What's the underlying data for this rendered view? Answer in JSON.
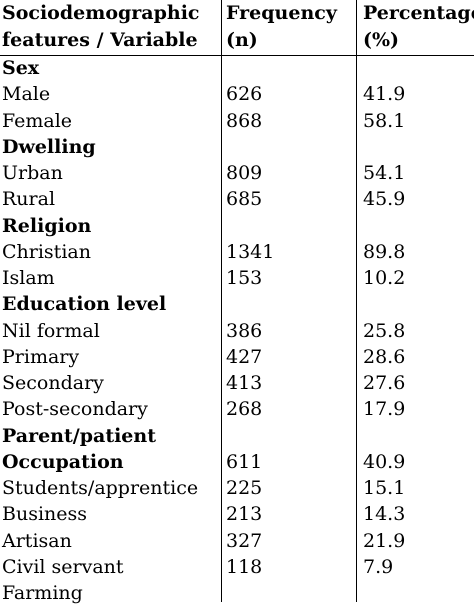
{
  "header": {
    "col1": [
      "Sociodemographic",
      "features / Variable"
    ],
    "col2": [
      "Frequency",
      "(n)"
    ],
    "col3": [
      "Percentage",
      "(%)"
    ]
  },
  "rows": [
    {
      "label": "Sex",
      "n": "",
      "pct": "",
      "section": true
    },
    {
      "label": "Male",
      "n": "626",
      "pct": "41.9",
      "section": false
    },
    {
      "label": "Female",
      "n": "868",
      "pct": "58.1",
      "section": false
    },
    {
      "label": "Dwelling",
      "n": "",
      "pct": "",
      "section": true
    },
    {
      "label": "Urban",
      "n": "809",
      "pct": "54.1",
      "section": false
    },
    {
      "label": "Rural",
      "n": "685",
      "pct": "45.9",
      "section": false
    },
    {
      "label": "Religion",
      "n": "",
      "pct": "",
      "section": true
    },
    {
      "label": "Christian",
      "n": "1341",
      "pct": "89.8",
      "section": false
    },
    {
      "label": "Islam",
      "n": "153",
      "pct": "10.2",
      "section": false
    },
    {
      "label": "Education level",
      "n": "",
      "pct": "",
      "section": true
    },
    {
      "label": "Nil formal",
      "n": "386",
      "pct": "25.8",
      "section": false
    },
    {
      "label": "Primary",
      "n": "427",
      "pct": "28.6",
      "section": false
    },
    {
      "label": "Secondary",
      "n": "413",
      "pct": "27.6",
      "section": false
    },
    {
      "label": "Post-secondary",
      "n": "268",
      "pct": "17.9",
      "section": false
    },
    {
      "label": "Parent/patient",
      "n": "",
      "pct": "",
      "section": true
    },
    {
      "label": "Occupation",
      "n": "611",
      "pct": "40.9",
      "section": true
    },
    {
      "label": "Students/apprentice",
      "n": "225",
      "pct": "15.1",
      "section": false
    },
    {
      "label": "Business",
      "n": "213",
      "pct": "14.3",
      "section": false
    },
    {
      "label": "Artisan",
      "n": "327",
      "pct": "21.9",
      "section": false
    },
    {
      "label": "Civil servant",
      "n": "118",
      "pct": "7.9",
      "section": false
    },
    {
      "label": "Farming",
      "n": "",
      "pct": "",
      "section": false
    }
  ]
}
